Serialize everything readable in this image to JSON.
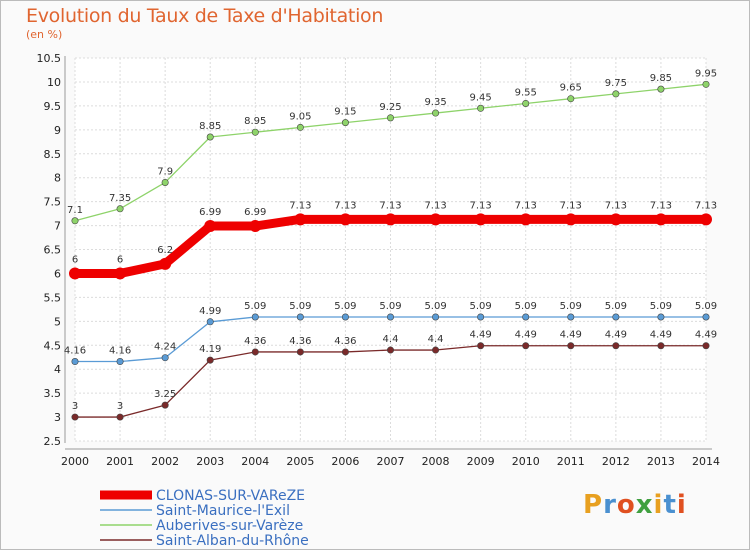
{
  "header": {
    "title": "Evolution du Taux de Taxe d'Habitation",
    "subtitle": "(en %)"
  },
  "logo": {
    "text": "Proxiti",
    "letter_colors": [
      "#e8a020",
      "#4a90d0",
      "#e05020",
      "#40a040",
      "#e8a020",
      "#4a90d0",
      "#e05020"
    ]
  },
  "chart_data": {
    "type": "line",
    "title": "Evolution du Taux de Taxe d'Habitation",
    "subtitle": "(en %)",
    "xlabel": "",
    "ylabel": "",
    "x": [
      "2000",
      "2001",
      "2002",
      "2003",
      "2004",
      "2005",
      "2006",
      "2007",
      "2008",
      "2009",
      "2010",
      "2011",
      "2012",
      "2013",
      "2014"
    ],
    "ylim": [
      2.5,
      10.5
    ],
    "yticks": [
      "2.5",
      "3",
      "3.5",
      "4",
      "4.5",
      "5",
      "5.5",
      "6",
      "6.5",
      "7",
      "7.5",
      "8",
      "8.5",
      "9",
      "9.5",
      "10",
      "10.5"
    ],
    "grid": true,
    "legend_position": "bottom-left",
    "series": [
      {
        "name": "CLONAS-SUR-VAReZE",
        "color": "#ee0000",
        "values": [
          6,
          6,
          6.2,
          6.99,
          6.99,
          7.13,
          7.13,
          7.13,
          7.13,
          7.13,
          7.13,
          7.13,
          7.13,
          7.13,
          7.13
        ],
        "labels": [
          "6",
          "6",
          "6.2",
          "6.99",
          "6.99",
          "7.13",
          "7.13",
          "7.13",
          "7.13",
          "7.13",
          "7.13",
          "7.13",
          "7.13",
          "7.13",
          "7.13"
        ]
      },
      {
        "name": "Saint-Maurice-l'Exil",
        "color": "#5a9bd5",
        "values": [
          4.16,
          4.16,
          4.24,
          4.99,
          5.09,
          5.09,
          5.09,
          5.09,
          5.09,
          5.09,
          5.09,
          5.09,
          5.09,
          5.09,
          5.09
        ],
        "labels": [
          "4.16",
          "4.16",
          "4.24",
          "4.99",
          "5.09",
          "5.09",
          "5.09",
          "5.09",
          "5.09",
          "5.09",
          "5.09",
          "5.09",
          "5.09",
          "5.09",
          "5.09"
        ]
      },
      {
        "name": "Auberives-sur-Varèze",
        "color": "#8ed36a",
        "values": [
          7.1,
          7.35,
          7.9,
          8.85,
          8.95,
          9.05,
          9.15,
          9.25,
          9.35,
          9.45,
          9.55,
          9.65,
          9.75,
          9.85,
          9.95
        ],
        "labels": [
          "7.1",
          "7.35",
          "7.9",
          "8.85",
          "8.95",
          "9.05",
          "9.15",
          "9.25",
          "9.35",
          "9.45",
          "9.55",
          "9.65",
          "9.75",
          "9.85",
          "9.95"
        ]
      },
      {
        "name": "Saint-Alban-du-Rhône",
        "color": "#7a2a2a",
        "values": [
          3,
          3,
          3.25,
          4.19,
          4.36,
          4.36,
          4.36,
          4.4,
          4.4,
          4.49,
          4.49,
          4.49,
          4.49,
          4.49,
          4.49
        ],
        "labels": [
          "3",
          "3",
          "3.25",
          "4.19",
          "4.36",
          "4.36",
          "4.36",
          "4.4",
          "4.4",
          "4.49",
          "4.49",
          "4.49",
          "4.49",
          "4.49",
          "4.49"
        ]
      }
    ]
  }
}
